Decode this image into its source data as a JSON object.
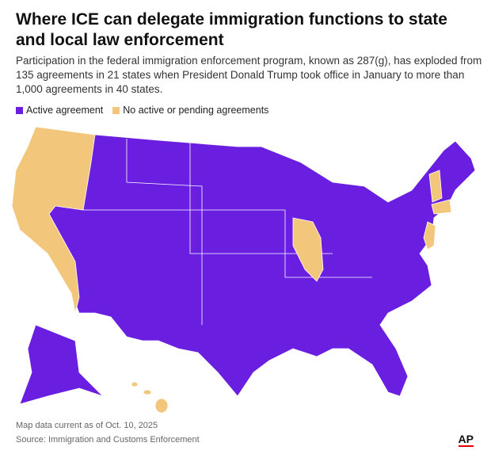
{
  "header": {
    "title": "Where ICE can delegate immigration functions to state and local law enforcement",
    "subtitle": "Participation in the federal immigration enforcement program, known as 287(g), has exploded from 135 agreements in 21 states when President Donald Trump took office in January to more than 1,000 agreements in 40 states."
  },
  "legend": [
    {
      "label": "Active agreement",
      "color": "#6a1fe0"
    },
    {
      "label": "No active or pending agreements",
      "color": "#f2c77b"
    }
  ],
  "footer": {
    "note": "Map data current as of Oct. 10, 2025",
    "source": "Source: Immigration and Customs Enforcement",
    "logo": "AP"
  }
}
